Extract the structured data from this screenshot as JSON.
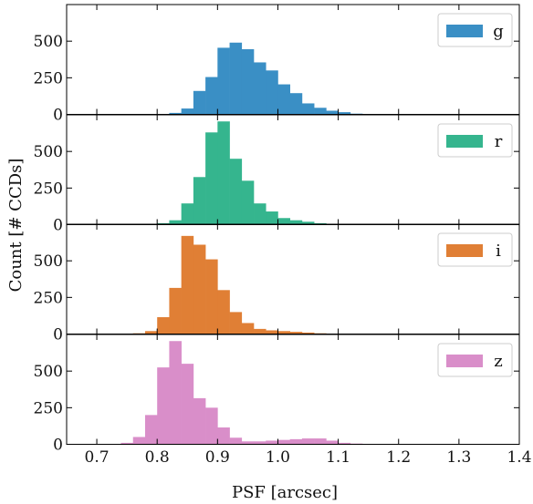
{
  "chart_data": {
    "type": "bar",
    "xlabel": "PSF [arcsec]",
    "ylabel": "Count [# CCDs]",
    "xlim": [
      0.65,
      1.4
    ],
    "ylim": [
      0,
      750
    ],
    "bin_width": 0.02,
    "x_ticks": [
      "0.7",
      "0.8",
      "0.9",
      "1.0",
      "1.1",
      "1.2",
      "1.3",
      "1.4"
    ],
    "y_ticks": [
      "0",
      "250",
      "500"
    ],
    "legend_position": "top-right",
    "panels": [
      {
        "band": "g",
        "color": "#3a8fc5",
        "bin_starts": [
          0.82,
          0.84,
          0.86,
          0.88,
          0.9,
          0.92,
          0.94,
          0.96,
          0.98,
          1.0,
          1.02,
          1.04,
          1.06,
          1.08,
          1.1,
          1.12
        ],
        "counts": [
          10,
          40,
          160,
          255,
          455,
          490,
          445,
          355,
          300,
          205,
          145,
          75,
          45,
          25,
          15,
          5
        ]
      },
      {
        "band": "r",
        "color": "#35b58e",
        "bin_starts": [
          0.8,
          0.82,
          0.84,
          0.86,
          0.88,
          0.9,
          0.92,
          0.94,
          0.96,
          0.98,
          1.0,
          1.02,
          1.04,
          1.06,
          1.08,
          1.1,
          1.12,
          1.14
        ],
        "counts": [
          10,
          30,
          145,
          325,
          630,
          705,
          450,
          300,
          145,
          90,
          45,
          30,
          20,
          10,
          5,
          5,
          3,
          2
        ]
      },
      {
        "band": "i",
        "color": "#e07f35",
        "bin_starts": [
          0.76,
          0.78,
          0.8,
          0.82,
          0.84,
          0.86,
          0.88,
          0.9,
          0.92,
          0.94,
          0.96,
          0.98,
          1.0,
          1.02,
          1.04,
          1.06,
          1.08
        ],
        "counts": [
          5,
          20,
          115,
          315,
          670,
          610,
          510,
          300,
          150,
          75,
          35,
          25,
          20,
          15,
          10,
          5,
          3
        ]
      },
      {
        "band": "z",
        "color": "#d98ec9",
        "bin_starts": [
          0.74,
          0.76,
          0.78,
          0.8,
          0.82,
          0.84,
          0.86,
          0.88,
          0.9,
          0.92,
          0.94,
          0.96,
          0.98,
          1.0,
          1.02,
          1.04,
          1.06,
          1.08,
          1.1,
          1.12
        ],
        "counts": [
          10,
          50,
          200,
          525,
          705,
          550,
          315,
          250,
          115,
          45,
          20,
          20,
          25,
          30,
          35,
          40,
          40,
          25,
          10,
          5
        ]
      }
    ]
  }
}
